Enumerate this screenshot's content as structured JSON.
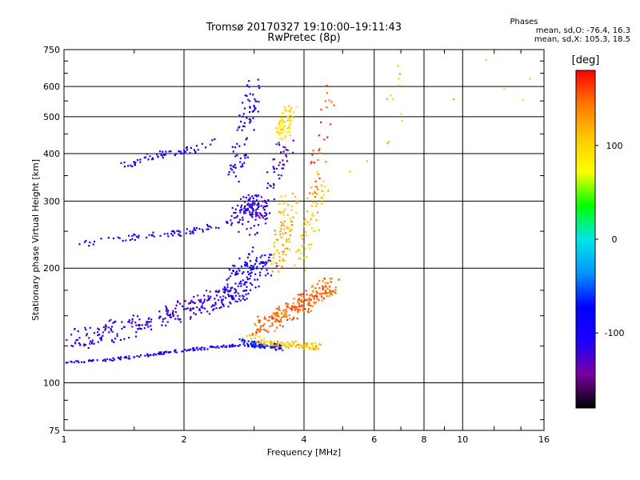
{
  "title": {
    "line1": "Tromsø 20170327 19:10:00–19:11:43",
    "line2": "RwPretec (8p)"
  },
  "phases": {
    "heading": "Phases",
    "line_o": "mean, sd,O: -76.4, 16.3",
    "line_x": "mean, sd,X: 105.3, 18.5"
  },
  "colorbar": {
    "unit": "[deg]",
    "ticks": [
      100,
      0,
      -100
    ],
    "range": [
      -180,
      180
    ],
    "colors": [
      "#000000",
      "#7a00a0",
      "#1a00ff",
      "#0000ff",
      "#0096ff",
      "#00e6e6",
      "#00ff00",
      "#ffff00",
      "#ffc800",
      "#ff7800",
      "#ff0000"
    ]
  },
  "chart_data": {
    "type": "scatter",
    "xlabel": "Frequency [MHz]",
    "ylabel": "Stationary phase Virtual Height [km]",
    "xscale": "log",
    "yscale": "log",
    "xlim": [
      1,
      16
    ],
    "ylim": [
      75,
      750
    ],
    "xticks": [
      1,
      2,
      4,
      6,
      8,
      10,
      16
    ],
    "yticks": [
      75,
      100,
      200,
      300,
      400,
      500,
      600,
      750
    ],
    "grid": true,
    "color_quantity": "phase [deg]",
    "series": [
      {
        "traces": [
          {
            "x": [
              1.0,
              1.3,
              1.6,
              2.0,
              2.4,
              2.8,
              3.2,
              3.5
            ],
            "y": [
              113,
              115,
              118,
              122,
              124,
              126,
              125,
              125
            ],
            "spread": 0.008,
            "phase": -105,
            "n": 180
          },
          {
            "x": [
              1.05,
              1.3,
              1.6,
              2.0,
              2.4,
              2.8
            ],
            "y": [
              130,
              135,
              145,
              155,
              165,
              175
            ],
            "spread": 0.06,
            "phase": -118,
            "n": 260
          },
          {
            "x": [
              1.1,
              1.4,
              1.8,
              2.1,
              2.4
            ],
            "y": [
              230,
              240,
              245,
              250,
              260
            ],
            "spread": 0.02,
            "phase": -108,
            "n": 70
          },
          {
            "x": [
              1.4,
              1.6,
              1.8,
              2.1,
              2.4
            ],
            "y": [
              370,
              390,
              400,
              410,
              430
            ],
            "spread": 0.02,
            "phase": -105,
            "n": 60
          },
          {
            "x": [
              2.6,
              2.8,
              2.9,
              3.0,
              3.2
            ],
            "y": [
              260,
              280,
              300,
              290,
              280
            ],
            "spread": 0.05,
            "phase": -112,
            "n": 110
          },
          {
            "x": [
              2.6,
              2.8,
              3.0,
              3.2
            ],
            "y": [
              170,
              190,
              200,
              210
            ],
            "spread": 0.08,
            "phase": -95,
            "n": 130
          },
          {
            "x": [
              2.7,
              2.8,
              2.9,
              3.0
            ],
            "y": [
              350,
              420,
              520,
              620
            ],
            "spread": 0.05,
            "phase": -95,
            "n": 80
          },
          {
            "x": [
              3.0,
              3.2,
              3.4,
              3.6
            ],
            "y": [
              250,
              300,
              350,
              420
            ],
            "spread": 0.05,
            "phase": -125,
            "n": 70
          },
          {
            "x": [
              2.8,
              3.0,
              3.3,
              3.5
            ],
            "y": [
              128,
              126,
              125,
              124
            ],
            "spread": 0.02,
            "phase": -65,
            "n": 60
          }
        ]
      },
      {
        "traces": [
          {
            "x": [
              2.9,
              3.2,
              3.5,
              3.8,
              4.1,
              4.4
            ],
            "y": [
              132,
              128,
              126,
              126,
              125,
              125
            ],
            "spread": 0.02,
            "phase": 110,
            "n": 110
          },
          {
            "x": [
              3.1,
              3.3,
              3.5,
              3.7,
              3.9,
              4.1,
              4.3,
              4.5,
              4.7
            ],
            "y": [
              140,
              145,
              150,
              155,
              160,
              165,
              170,
              175,
              180
            ],
            "spread": 0.05,
            "phase": 150,
            "n": 240
          },
          {
            "x": [
              3.3,
              3.5,
              3.6,
              3.7
            ],
            "y": [
              200,
              230,
              270,
              310
            ],
            "spread": 0.05,
            "phase": 118,
            "n": 90
          },
          {
            "x": [
              3.5,
              3.6,
              3.7
            ],
            "y": [
              450,
              480,
              520
            ],
            "spread": 0.04,
            "phase": 95,
            "n": 70
          },
          {
            "x": [
              3.9,
              4.1,
              4.3,
              4.5
            ],
            "y": [
              200,
              250,
              300,
              350
            ],
            "spread": 0.05,
            "phase": 108,
            "n": 70
          },
          {
            "x": [
              4.2,
              4.4,
              4.6
            ],
            "y": [
              300,
              400,
              600
            ],
            "spread": 0.05,
            "phase": 160,
            "n": 30
          },
          {
            "x": [
              6.0,
              7.0,
              15.5
            ],
            "y": [
              400,
              600,
              620
            ],
            "spread": 0.15,
            "phase": 110,
            "n": 18
          }
        ]
      }
    ]
  }
}
